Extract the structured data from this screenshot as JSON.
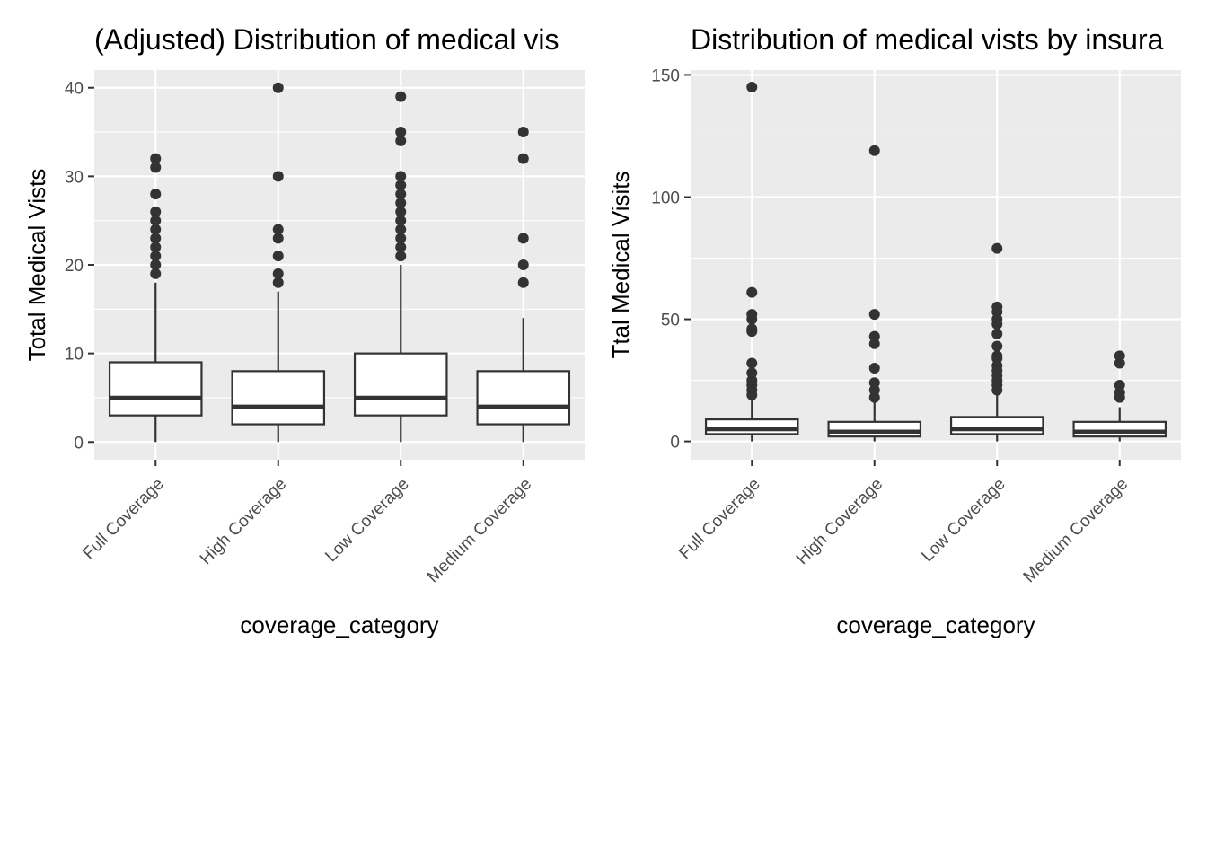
{
  "colors": {
    "panel_bg": "#ebebeb",
    "grid": "#ffffff",
    "box_stroke": "#333333",
    "box_fill": "#ffffff",
    "outlier": "#333333",
    "tick_text": "#4d4d4d"
  },
  "chart_data": [
    {
      "type": "boxplot",
      "title": "(Adjusted) Distribution of medical vis",
      "xlabel": "coverage_category",
      "ylabel": "Total Medical Vists",
      "categories": [
        "Full Coverage",
        "High Coverage",
        "Low Coverage",
        "Medium Coverage"
      ],
      "ylim": [
        -2,
        42
      ],
      "yticks": [
        0,
        10,
        20,
        30,
        40
      ],
      "boxes": [
        {
          "lower_whisker": 0,
          "q1": 3,
          "median": 5,
          "q3": 9,
          "upper_whisker": 18,
          "outliers": [
            19,
            20,
            21,
            22,
            23,
            24,
            25,
            26,
            28,
            31,
            32
          ]
        },
        {
          "lower_whisker": 0,
          "q1": 2,
          "median": 4,
          "q3": 8,
          "upper_whisker": 17,
          "outliers": [
            18,
            19,
            21,
            23,
            24,
            30,
            40
          ]
        },
        {
          "lower_whisker": 0,
          "q1": 3,
          "median": 5,
          "q3": 10,
          "upper_whisker": 20,
          "outliers": [
            21,
            22,
            23,
            24,
            25,
            26,
            27,
            28,
            29,
            30,
            34,
            35,
            39
          ]
        },
        {
          "lower_whisker": 0,
          "q1": 2,
          "median": 4,
          "q3": 8,
          "upper_whisker": 14,
          "outliers": [
            18,
            20,
            23,
            32,
            35
          ]
        }
      ]
    },
    {
      "type": "boxplot",
      "title": "Distribution of medical vists by insura",
      "xlabel": "coverage_category",
      "ylabel": "Ttal Medical Visits",
      "categories": [
        "Full Coverage",
        "High Coverage",
        "Low Coverage",
        "Medium Coverage"
      ],
      "ylim": [
        -7.5,
        152
      ],
      "yticks": [
        0,
        50,
        100,
        150
      ],
      "boxes": [
        {
          "lower_whisker": 0,
          "q1": 3,
          "median": 5,
          "q3": 9,
          "upper_whisker": 18,
          "outliers": [
            19,
            21,
            23,
            25,
            28,
            32,
            45,
            46,
            50,
            52,
            61,
            145
          ]
        },
        {
          "lower_whisker": 0,
          "q1": 2,
          "median": 4,
          "q3": 8,
          "upper_whisker": 17,
          "outliers": [
            18,
            21,
            24,
            30,
            40,
            43,
            52,
            119
          ]
        },
        {
          "lower_whisker": 0,
          "q1": 3,
          "median": 5,
          "q3": 10,
          "upper_whisker": 20,
          "outliers": [
            21,
            23,
            25,
            27,
            29,
            31,
            34,
            35,
            39,
            44,
            48,
            50,
            53,
            55,
            79
          ]
        },
        {
          "lower_whisker": 0,
          "q1": 2,
          "median": 4,
          "q3": 8,
          "upper_whisker": 14,
          "outliers": [
            18,
            20,
            23,
            32,
            35
          ]
        }
      ]
    }
  ]
}
